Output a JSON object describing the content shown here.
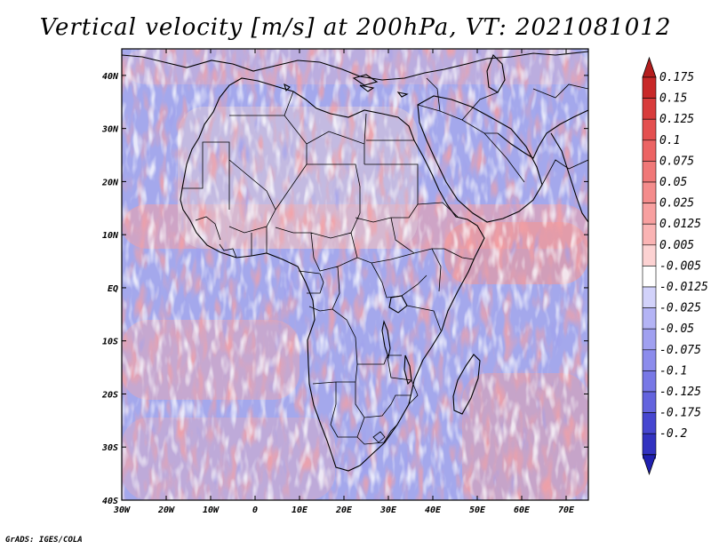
{
  "title": "Vertical velocity [m/s] at 200hPa, VT: 2021081012",
  "footer": "GrADS: IGES/COLA",
  "map": {
    "variable": "Vertical velocity",
    "units": "m/s",
    "level": "200hPa",
    "valid_time": "2021081012",
    "lon_range": [
      -30,
      75
    ],
    "lat_range": [
      -40,
      45
    ],
    "x_ticks": [
      {
        "lon": -30,
        "label": "30W"
      },
      {
        "lon": -20,
        "label": "20W"
      },
      {
        "lon": -10,
        "label": "10W"
      },
      {
        "lon": 0,
        "label": "0"
      },
      {
        "lon": 10,
        "label": "10E"
      },
      {
        "lon": 20,
        "label": "20E"
      },
      {
        "lon": 30,
        "label": "30E"
      },
      {
        "lon": 40,
        "label": "40E"
      },
      {
        "lon": 50,
        "label": "50E"
      },
      {
        "lon": 60,
        "label": "60E"
      },
      {
        "lon": 70,
        "label": "70E"
      }
    ],
    "y_ticks": [
      {
        "lat": 40,
        "label": "40N"
      },
      {
        "lat": 30,
        "label": "30N"
      },
      {
        "lat": 20,
        "label": "20N"
      },
      {
        "lat": 10,
        "label": "10N"
      },
      {
        "lat": 0,
        "label": "EQ"
      },
      {
        "lat": -10,
        "label": "10S"
      },
      {
        "lat": -20,
        "label": "20S"
      },
      {
        "lat": -30,
        "label": "30S"
      },
      {
        "lat": -40,
        "label": "40S"
      }
    ]
  },
  "colorbar": {
    "levels": [
      {
        "label": "0.175",
        "color": "#c82828"
      },
      {
        "label": "0.15",
        "color": "#d83c3c"
      },
      {
        "label": "0.125",
        "color": "#e45050"
      },
      {
        "label": "0.1",
        "color": "#ec6464"
      },
      {
        "label": "0.075",
        "color": "#f07878"
      },
      {
        "label": "0.05",
        "color": "#f48c8c"
      },
      {
        "label": "0.025",
        "color": "#f8a0a0"
      },
      {
        "label": "0.0125",
        "color": "#fab4b4"
      },
      {
        "label": "0.005",
        "color": "#fcd2d2"
      },
      {
        "label": "-0.005",
        "color": "#ffffff"
      },
      {
        "label": "-0.0125",
        "color": "#d2d2fa"
      },
      {
        "label": "-0.025",
        "color": "#b4b4f5"
      },
      {
        "label": "-0.05",
        "color": "#a0a0f0"
      },
      {
        "label": "-0.075",
        "color": "#8c8cec"
      },
      {
        "label": "-0.1",
        "color": "#7878e6"
      },
      {
        "label": "-0.125",
        "color": "#6464de"
      },
      {
        "label": "-0.175",
        "color": "#4646d0"
      },
      {
        "label": "-0.2",
        "color": "#3232c0"
      }
    ],
    "top_arrow_color": "#b41e1e",
    "bottom_arrow_color": "#2020b0",
    "last_cell_color": "#2a2ab8"
  },
  "colors": {
    "ocean_base": "#a4a8ec",
    "land_base": "#dcc8d8",
    "coastline": "#000000",
    "frame": "#000000"
  }
}
